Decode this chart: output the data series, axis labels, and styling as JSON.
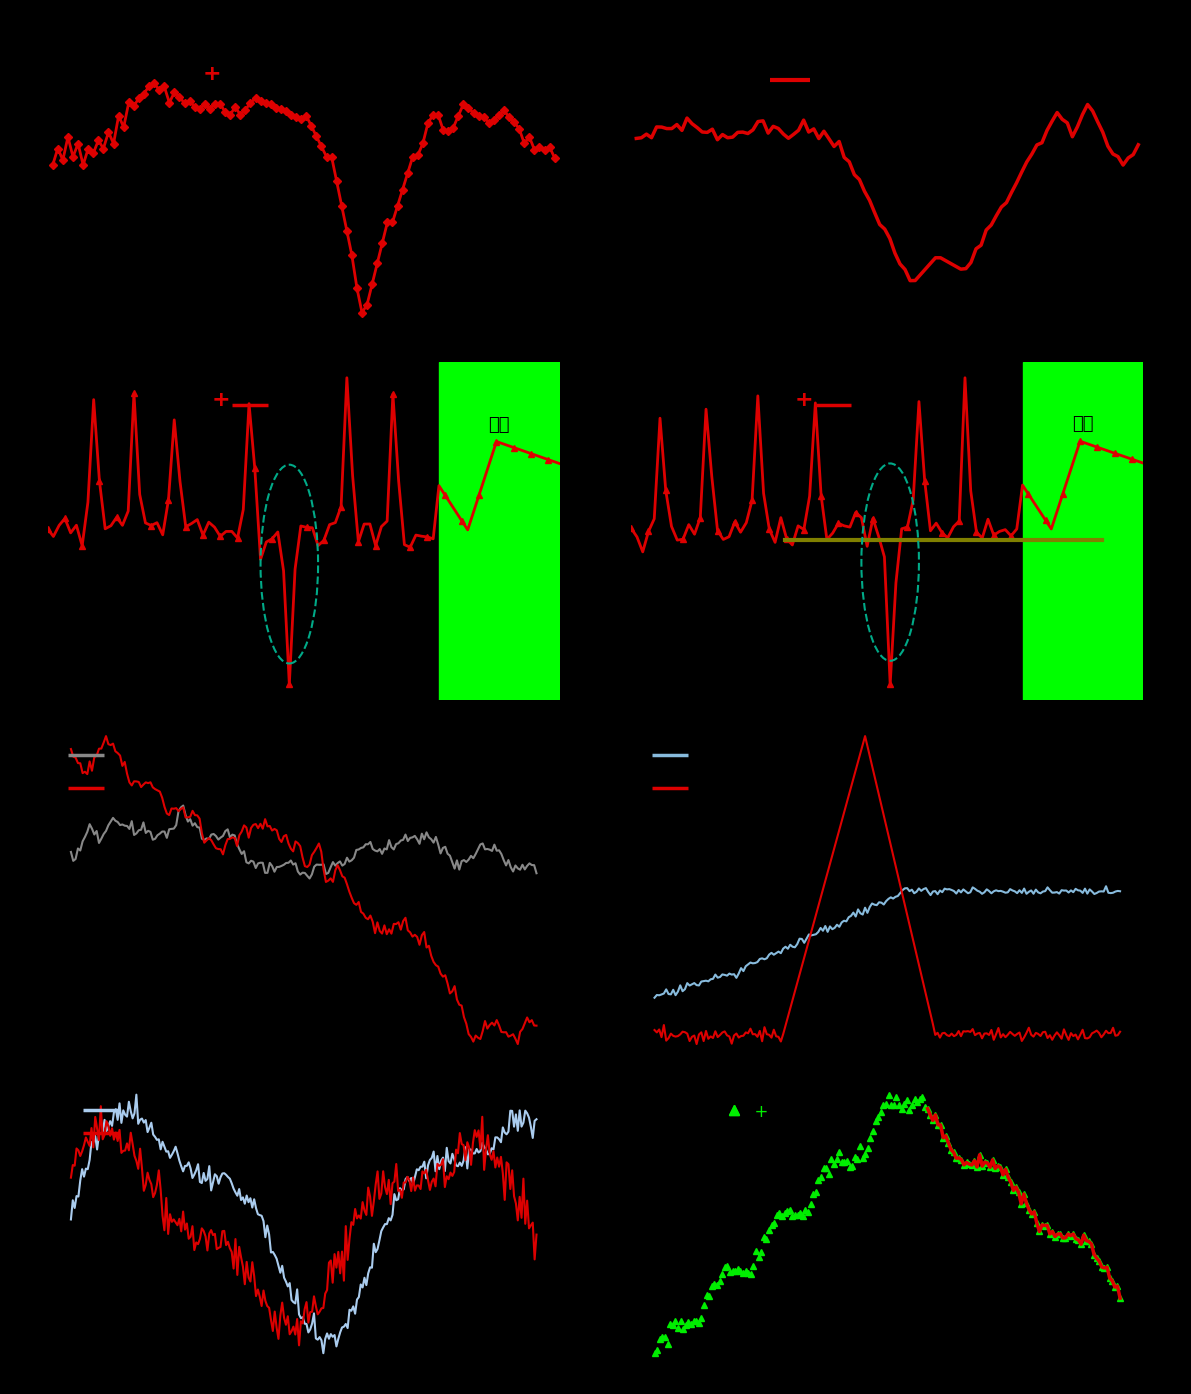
{
  "bg_color": "#000000",
  "sep_color": "#666666",
  "red": "#dd0000",
  "bright_red": "#ff0000",
  "green": "#00ff00",
  "gray": "#888888",
  "light_blue": "#6699bb",
  "sky_blue": "#88bbdd",
  "olive": "#808000",
  "cyan_dashed": "#00aa88",
  "lime_green": "#00ee00",
  "forecast_text": "预测",
  "row1_left_marker": "♦",
  "row1_right_has_arrow": true
}
